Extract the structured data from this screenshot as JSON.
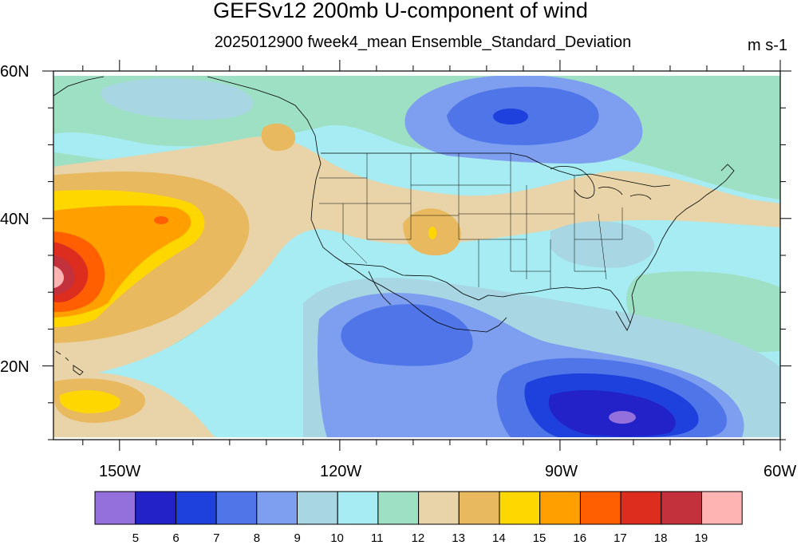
{
  "title": "GEFSv12 200mb U-component of wind",
  "subtitle": "2025012900 fweek4_mean Ensemble_Standard_Deviation",
  "units": "m s-1",
  "map": {
    "region": "North Pacific / North America",
    "lat_range": [
      10,
      60
    ],
    "lon_range": [
      -159,
      -60
    ],
    "lat_ticks": [
      {
        "value": 60,
        "label": "60N"
      },
      {
        "value": 40,
        "label": "40N"
      },
      {
        "value": 20,
        "label": "20N"
      }
    ],
    "lon_ticks": [
      {
        "value": -150,
        "label": "150W"
      },
      {
        "value": -120,
        "label": "120W"
      },
      {
        "value": -90,
        "label": "90W"
      },
      {
        "value": -60,
        "label": "60W"
      }
    ]
  },
  "colorbar": {
    "levels": [
      "5",
      "6",
      "7",
      "8",
      "9",
      "10",
      "11",
      "12",
      "13",
      "14",
      "15",
      "16",
      "17",
      "18",
      "19"
    ],
    "colors": [
      "#9370db",
      "#2222c8",
      "#1e40dc",
      "#4f75e8",
      "#7e9ff0",
      "#a8d6e3",
      "#a6ecf2",
      "#9ee0c4",
      "#e8d4a8",
      "#e8b95e",
      "#ffd700",
      "#ffa000",
      "#ff5f00",
      "#dc2d1e",
      "#c3323c",
      "#ffb4b4"
    ]
  }
}
